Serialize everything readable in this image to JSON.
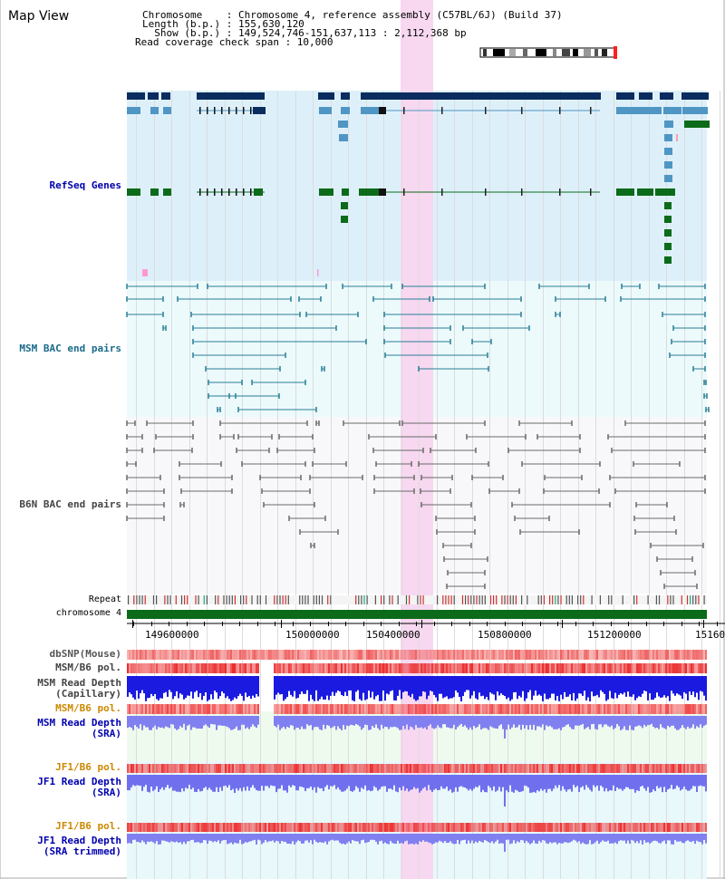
{
  "page": {
    "title": "Map View"
  },
  "info": {
    "line1": "Chromosome    : Chromosome 4, reference assembly (C57BL/6J) (Build 37)",
    "line2": "Length (b.p.) : 155,630,120",
    "line3": "  Show (b.p.) : 149,524,746-151,637,113 : 2,112,368 bp",
    "line4": "Read coverage check span : 10,000"
  },
  "tracks": {
    "refseq": "RefSeq Genes",
    "msm_bac": "MSM BAC end pairs",
    "b6n_bac": "B6N BAC end pairs",
    "repeat": "Repeat",
    "chromosome": "chromosome 4",
    "dbsnp": "dbSNP(Mouse)",
    "msm_b6_pol_1": "MSM/B6 pol.",
    "msm_read_depth_cap_1": "MSM Read Depth",
    "msm_read_depth_cap_2": "(Capillary)",
    "msm_b6_pol_2": "MSM/B6 pol.",
    "msm_read_depth_sra_1": "MSM Read Depth",
    "msm_read_depth_sra_2": "(SRA)",
    "jf1_b6_pol_1": "JF1/B6 pol.",
    "jf1_read_depth_sra_1": "JF1 Read Depth",
    "jf1_read_depth_sra_2": "(SRA)",
    "jf1_b6_pol_2": "JF1/B6 pol.",
    "jf1_read_depth_trim_1": "JF1 Read Depth",
    "jf1_read_depth_trim_2": "(SRA trimmed)"
  },
  "axis": {
    "ticks": [
      "149600000",
      "150000000",
      "150400000",
      "150800000",
      "151200000",
      "15160"
    ]
  },
  "colors": {
    "refseq_bg": "#ddf0fa",
    "msm_bg": "#ecfafc",
    "b6n_bg": "#f8f8fb",
    "highlight": "#f7d8f0",
    "navy": "#0b2c5e",
    "steel": "#4f96c4",
    "green": "#0c6b1a",
    "teal": "#2a7f96",
    "gray": "#6a6a6a",
    "red": "#e43a3a",
    "blue": "#2a2ae0",
    "lavender": "#8b8bf0",
    "label_blue": "#0000b0",
    "label_orange": "#cc8800",
    "label_teal": "#1a6a8a",
    "label_dark": "#333333"
  }
}
